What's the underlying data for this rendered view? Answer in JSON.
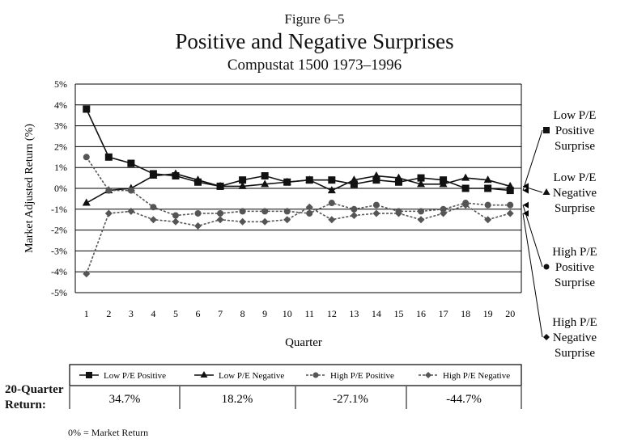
{
  "figure_label": "Figure 6–5",
  "title": "Positive and Negative Surprises",
  "subtitle": "Compustat 1500 1973–1996",
  "footnote": "0% = Market Return",
  "returns_label_line1": "20-Quarter",
  "returns_label_line2": "Return:",
  "colors": {
    "line": "#111111",
    "light": "#555555",
    "grid": "#000000"
  },
  "chart_data": {
    "type": "line",
    "title": "Positive and Negative Surprises",
    "xlabel": "Quarter",
    "ylabel": "Market Adjusted Return (%)",
    "ylim": [
      -5,
      5
    ],
    "yticks": [
      "5%",
      "4%",
      "3%",
      "2%",
      "1%",
      "0%",
      "-1%",
      "-2%",
      "-3%",
      "-4%",
      "-5%"
    ],
    "x": [
      1,
      2,
      3,
      4,
      5,
      6,
      7,
      8,
      9,
      10,
      11,
      12,
      13,
      14,
      15,
      16,
      17,
      18,
      19,
      20
    ],
    "series": [
      {
        "name": "Low P/E Positive",
        "marker": "square",
        "values": [
          3.8,
          1.5,
          1.2,
          0.7,
          0.6,
          0.3,
          0.1,
          0.4,
          0.6,
          0.3,
          0.4,
          0.4,
          0.2,
          0.4,
          0.3,
          0.5,
          0.4,
          0.0,
          0.0,
          -0.1
        ],
        "side_label": [
          "Low P/E",
          "Positive",
          "Surprise"
        ],
        "twenty_quarter_return": "34.7%"
      },
      {
        "name": "Low P/E Negative",
        "marker": "triangle",
        "values": [
          -0.7,
          -0.1,
          0.0,
          0.6,
          0.7,
          0.4,
          0.1,
          0.1,
          0.2,
          0.3,
          0.4,
          -0.1,
          0.4,
          0.6,
          0.5,
          0.2,
          0.2,
          0.5,
          0.4,
          0.1
        ],
        "side_label": [
          "Low P/E",
          "Negative",
          "Surprise"
        ],
        "twenty_quarter_return": "18.2%"
      },
      {
        "name": "High P/E Positive",
        "marker": "circle",
        "values": [
          1.5,
          -0.1,
          -0.1,
          -0.9,
          -1.3,
          -1.2,
          -1.2,
          -1.1,
          -1.1,
          -1.1,
          -1.2,
          -0.7,
          -1.0,
          -0.8,
          -1.1,
          -1.1,
          -1.0,
          -0.7,
          -0.8,
          -0.8
        ],
        "side_label": [
          "High P/E",
          "Positive",
          "Surprise"
        ],
        "twenty_quarter_return": "-27.1%"
      },
      {
        "name": "High P/E Negative",
        "marker": "diamond",
        "values": [
          -4.1,
          -1.2,
          -1.1,
          -1.5,
          -1.6,
          -1.8,
          -1.5,
          -1.6,
          -1.6,
          -1.5,
          -0.9,
          -1.5,
          -1.3,
          -1.2,
          -1.2,
          -1.5,
          -1.2,
          -0.8,
          -1.5,
          -1.2
        ],
        "side_label": [
          "High P/E",
          "Negative",
          "Surprise"
        ],
        "twenty_quarter_return": "-44.7%"
      }
    ]
  }
}
